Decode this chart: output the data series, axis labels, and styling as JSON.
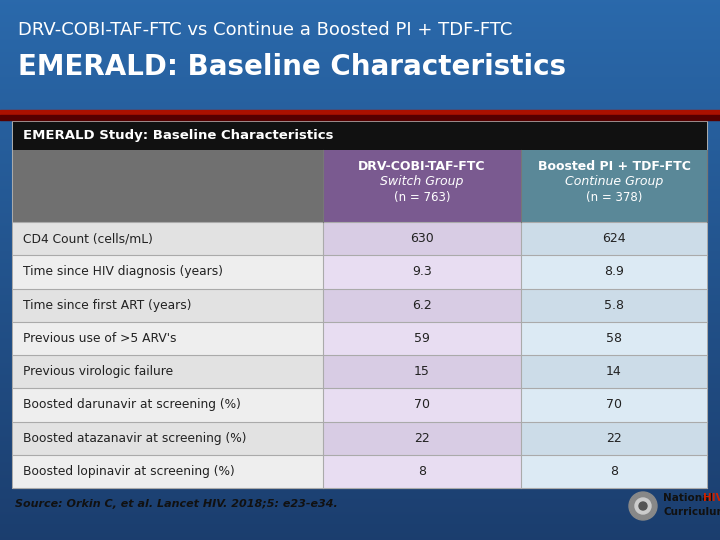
{
  "title_line1": "DRV-COBI-TAF-FTC vs Continue a Boosted PI + TDF-FTC",
  "title_line2": "EMERALD: Baseline Characteristics",
  "table_header": "EMERALD Study: Baseline Characteristics",
  "col1_header_line1": "DRV-COBI-TAF-FTC",
  "col1_header_line2": "Switch Group",
  "col1_header_line3": "(n = 763)",
  "col2_header_line1": "Boosted PI + TDF-FTC",
  "col2_header_line2": "Continue Group",
  "col2_header_line3": "(n = 378)",
  "rows": [
    [
      "CD4 Count (cells/mL)",
      "630",
      "624"
    ],
    [
      "Time since HIV diagnosis (years)",
      "9.3",
      "8.9"
    ],
    [
      "Time since first ART (years)",
      "6.2",
      "5.8"
    ],
    [
      "Previous use of >5 ARV's",
      "59",
      "58"
    ],
    [
      "Previous virologic failure",
      "15",
      "14"
    ],
    [
      "Boosted darunavir at screening (%)",
      "70",
      "70"
    ],
    [
      "Boosted atazanavir at screening (%)",
      "22",
      "22"
    ],
    [
      "Boosted lopinavir at screening (%)",
      "8",
      "8"
    ]
  ],
  "source": "Source: Orkin C, et al. Lancet HIV. 2018;5: e23-e34.",
  "bg_color_top": "#1a3d6e",
  "bg_color_bottom": "#2a6aaa",
  "table_header_bg": "#111111",
  "table_header_text": "#ffffff",
  "col0_header_bg": "#707070",
  "col1_header_bg": "#7a5a90",
  "col2_header_bg": "#5a8898",
  "row0_label_bg": "#e0e0e0",
  "row1_label_bg": "#f0f0f0",
  "row0_col1_bg": "#dccce8",
  "row1_col1_bg": "#ece0f4",
  "row0_col2_bg": "#ccdce8",
  "row1_col2_bg": "#dceaf4",
  "row_text": "#222222",
  "border_color": "#888888",
  "outer_border_color": "#999999",
  "title_text_color": "#ffffff",
  "source_text_color": "#111111",
  "red_line_color": "#aa1100",
  "dark_red_line_color": "#660000"
}
